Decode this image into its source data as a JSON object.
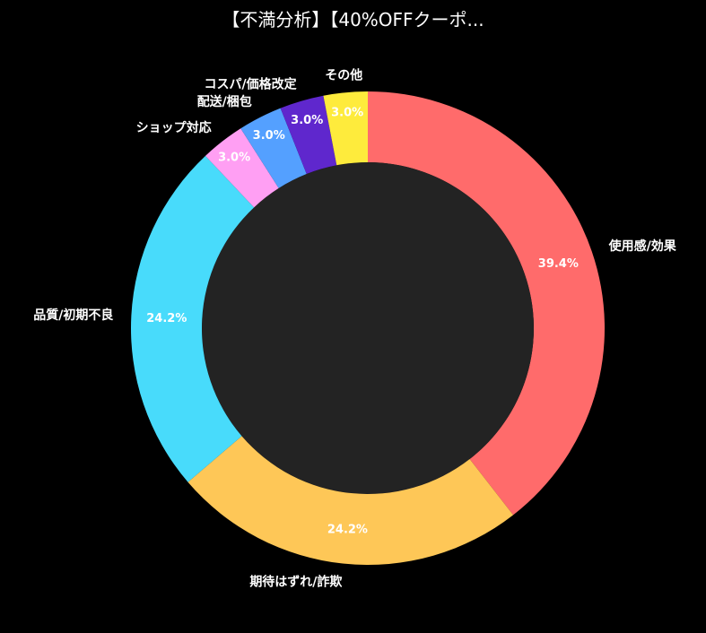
{
  "chart_data": {
    "type": "pie",
    "variant": "donut",
    "title": "【不満分析】【40%OFFクーポ...",
    "start": "top, clockwise",
    "hole_color": "#232323",
    "slices": [
      {
        "label": "使用感/効果",
        "value": 39.4,
        "pct": "39.4%",
        "color": "#ff6b6b"
      },
      {
        "label": "期待はずれ/詐欺",
        "value": 24.2,
        "pct": "24.2%",
        "color": "#fec757"
      },
      {
        "label": "品質/初期不良",
        "value": 24.2,
        "pct": "24.2%",
        "color": "#48dbfb"
      },
      {
        "label": "ショップ対応",
        "value": 3.0,
        "pct": "3.0%",
        "color": "#ff9ff3"
      },
      {
        "label": "配送/梱包",
        "value": 3.0,
        "pct": "3.0%",
        "color": "#54a0ff"
      },
      {
        "label": "コスパ/価格改定",
        "value": 3.0,
        "pct": "3.0%",
        "color": "#5f27cd"
      },
      {
        "label": "その他",
        "value": 3.0,
        "pct": "3.0%",
        "color": "#feeb3c"
      }
    ]
  }
}
